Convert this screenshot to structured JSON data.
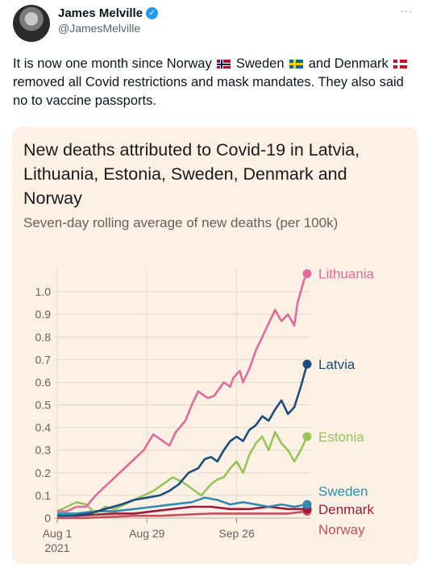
{
  "tweet": {
    "author_name": "James Melville",
    "handle": "@JamesMelville",
    "text_part1": "It is now one month since Norway",
    "text_part2": " Sweden",
    "text_part3": " and Denmark",
    "text_part4": " removed all Covid restrictions and mask mandates. They also said no to vaccine passports."
  },
  "icons": {
    "verified": "verified-badge-icon",
    "more": "more-options-icon"
  },
  "colors": {
    "Lithuania": "#e06a9a",
    "Latvia": "#1a4e7e",
    "Estonia": "#95c55a",
    "Sweden": "#2f8ab3",
    "Denmark": "#9b1c3a",
    "Norway": "#c84f5a",
    "card_background": "#fdf1e5"
  },
  "chart_data": {
    "type": "line",
    "title": "New deaths attributed to Covid-19 in Latvia, Lithuania, Estonia, Sweden, Denmark and Norway",
    "subtitle": "Seven-day rolling average of new deaths (per 100k)",
    "xlabel": "",
    "ylabel": "",
    "ylim": [
      0,
      1.1
    ],
    "yticks": [
      "0",
      "0.1",
      "0.2",
      "0.3",
      "0.4",
      "0.5",
      "0.6",
      "0.7",
      "0.8",
      "0.9",
      "1.0"
    ],
    "xticks": [
      {
        "day": 0,
        "label": "Aug 1",
        "sub": "2021"
      },
      {
        "day": 28,
        "label": "Aug 29",
        "sub": ""
      },
      {
        "day": 56,
        "label": "Sep 26",
        "sub": ""
      }
    ],
    "x_domain": [
      0,
      78
    ],
    "grid": true,
    "legend": "end-of-line labels",
    "x_unit": "days since Aug 1, 2021",
    "series": [
      {
        "name": "Lithuania",
        "x": [
          0,
          3,
          6,
          9,
          12,
          15,
          18,
          21,
          24,
          27,
          30,
          32,
          33,
          35,
          37,
          40,
          42,
          44,
          45,
          47,
          49,
          51,
          52,
          54,
          55,
          57,
          58,
          60,
          62,
          64,
          66,
          68,
          70,
          72,
          74,
          75,
          76,
          77,
          78
        ],
        "y": [
          0.03,
          0.03,
          0.05,
          0.05,
          0.1,
          0.14,
          0.18,
          0.22,
          0.26,
          0.3,
          0.37,
          0.35,
          0.34,
          0.32,
          0.38,
          0.43,
          0.5,
          0.56,
          0.55,
          0.53,
          0.54,
          0.58,
          0.6,
          0.58,
          0.62,
          0.65,
          0.6,
          0.66,
          0.74,
          0.8,
          0.86,
          0.92,
          0.87,
          0.9,
          0.85,
          0.95,
          1.0,
          1.05,
          1.08
        ]
      },
      {
        "name": "Latvia",
        "x": [
          0,
          5,
          10,
          15,
          20,
          24,
          28,
          32,
          35,
          38,
          41,
          44,
          46,
          48,
          50,
          52,
          54,
          56,
          58,
          60,
          62,
          64,
          66,
          68,
          70,
          72,
          74,
          76,
          78
        ],
        "y": [
          0.01,
          0.01,
          0.02,
          0.04,
          0.06,
          0.08,
          0.09,
          0.1,
          0.12,
          0.15,
          0.2,
          0.22,
          0.26,
          0.27,
          0.25,
          0.3,
          0.34,
          0.36,
          0.34,
          0.39,
          0.41,
          0.45,
          0.43,
          0.48,
          0.52,
          0.46,
          0.49,
          0.58,
          0.68
        ]
      },
      {
        "name": "Estonia",
        "x": [
          0,
          3,
          6,
          9,
          12,
          15,
          18,
          21,
          24,
          27,
          30,
          33,
          36,
          39,
          42,
          45,
          48,
          50,
          52,
          54,
          56,
          58,
          60,
          62,
          64,
          66,
          68,
          70,
          72,
          74,
          76,
          78
        ],
        "y": [
          0.03,
          0.05,
          0.07,
          0.06,
          0.02,
          0.05,
          0.04,
          0.06,
          0.08,
          0.1,
          0.12,
          0.15,
          0.18,
          0.16,
          0.13,
          0.1,
          0.15,
          0.17,
          0.18,
          0.22,
          0.25,
          0.2,
          0.28,
          0.33,
          0.36,
          0.3,
          0.38,
          0.33,
          0.3,
          0.25,
          0.3,
          0.36
        ]
      },
      {
        "name": "Sweden",
        "x": [
          0,
          6,
          12,
          18,
          24,
          30,
          36,
          42,
          46,
          50,
          54,
          58,
          62,
          66,
          70,
          74,
          78
        ],
        "y": [
          0.02,
          0.02,
          0.03,
          0.03,
          0.04,
          0.05,
          0.06,
          0.07,
          0.09,
          0.08,
          0.06,
          0.07,
          0.06,
          0.05,
          0.06,
          0.05,
          0.06
        ]
      },
      {
        "name": "Denmark",
        "x": [
          0,
          6,
          12,
          18,
          24,
          30,
          36,
          42,
          48,
          54,
          60,
          66,
          72,
          78
        ],
        "y": [
          0.01,
          0.01,
          0.015,
          0.02,
          0.02,
          0.03,
          0.04,
          0.05,
          0.05,
          0.04,
          0.04,
          0.05,
          0.04,
          0.04
        ]
      },
      {
        "name": "Norway",
        "x": [
          0,
          8,
          16,
          24,
          32,
          40,
          48,
          56,
          64,
          72,
          78
        ],
        "y": [
          0.0,
          0.0,
          0.005,
          0.01,
          0.01,
          0.015,
          0.02,
          0.02,
          0.02,
          0.02,
          0.03
        ]
      }
    ],
    "end_labels": [
      {
        "name": "Lithuania",
        "text": "Lithuania",
        "y": 1.08
      },
      {
        "name": "Latvia",
        "text": "Latvia",
        "y": 0.68
      },
      {
        "name": "Estonia",
        "text": "Estonia",
        "y": 0.36
      },
      {
        "name": "Sweden",
        "text": "Sweden",
        "y": 0.12
      },
      {
        "name": "Denmark",
        "text": "Denmark",
        "y": 0.04
      },
      {
        "name": "Norway",
        "text": "Norway",
        "y": -0.05
      }
    ]
  }
}
